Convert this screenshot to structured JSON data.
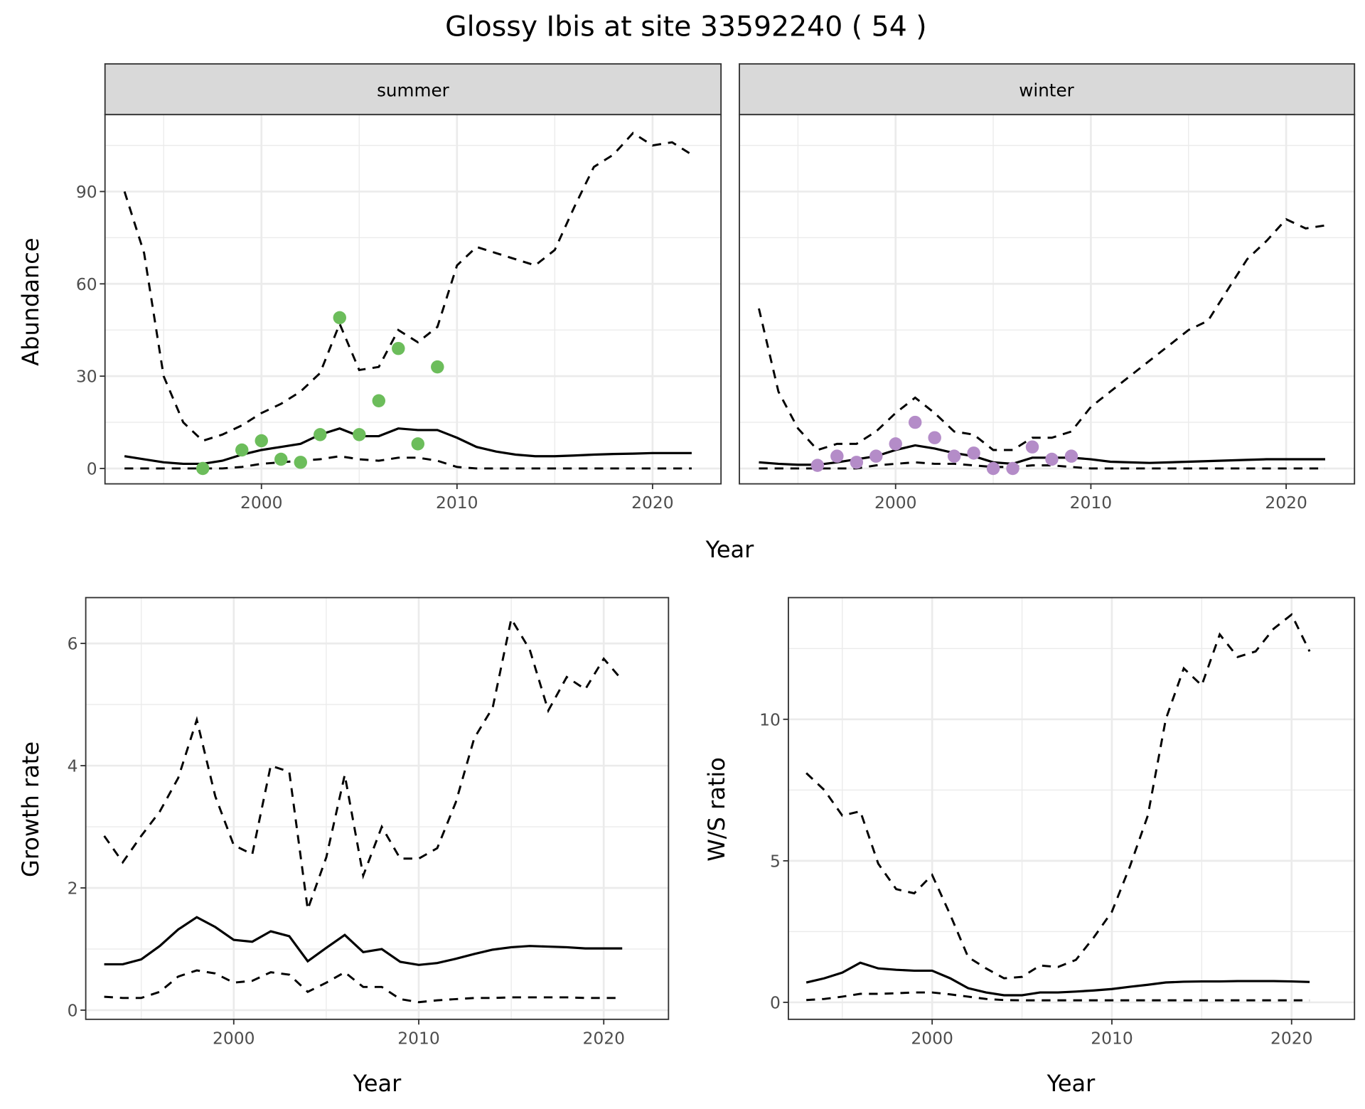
{
  "title": "Glossy Ibis at site 33592240 ( 54 )",
  "colors": {
    "summer_points": "#6cbd5b",
    "winter_points": "#b48cc8",
    "lines": "#000000"
  },
  "chart_data": [
    {
      "type": "line",
      "facet": "summer",
      "xlabel": "Year",
      "ylabel": "Abundance",
      "xlim": [
        1992,
        2023.5
      ],
      "ylim": [
        -5,
        115
      ],
      "xticks": [
        2000,
        2010,
        2020
      ],
      "yticks": [
        0,
        30,
        60,
        90
      ],
      "grid": true,
      "observed": {
        "x": [
          1997,
          1999,
          2000,
          2001,
          2002,
          2003,
          2004,
          2005,
          2006,
          2007,
          2008,
          2009
        ],
        "y": [
          0,
          6,
          9,
          3,
          2,
          11,
          49,
          11,
          22,
          39,
          8,
          33
        ]
      },
      "x": [
        1993,
        1994,
        1995,
        1996,
        1997,
        1998,
        1999,
        2000,
        2001,
        2002,
        2003,
        2004,
        2005,
        2006,
        2007,
        2008,
        2009,
        2010,
        2011,
        2012,
        2013,
        2014,
        2015,
        2016,
        2017,
        2018,
        2019,
        2020,
        2021,
        2022
      ],
      "mean": [
        4,
        3,
        2,
        1.5,
        1.5,
        2.5,
        4.5,
        6,
        7,
        8,
        11,
        13,
        10.5,
        10.5,
        13,
        12.5,
        12.5,
        10,
        7,
        5.5,
        4.5,
        4,
        4,
        4.2,
        4.5,
        4.7,
        4.8,
        5,
        5,
        5
      ],
      "upper": [
        90,
        70,
        30,
        15,
        9,
        11,
        14,
        18,
        21,
        25,
        31,
        47,
        32,
        33,
        45,
        41,
        46,
        66,
        72,
        70,
        68,
        66,
        71,
        85,
        98,
        102,
        109,
        105,
        106,
        102
      ],
      "lower": [
        0,
        0,
        0,
        0,
        0,
        0,
        0.5,
        1.5,
        2,
        2.5,
        3,
        4,
        3,
        2.5,
        3.5,
        3.5,
        2.5,
        0.5,
        0,
        0,
        0,
        0,
        0,
        0,
        0,
        0,
        0,
        0,
        0,
        0
      ]
    },
    {
      "type": "line",
      "facet": "winter",
      "xlabel": "Year",
      "ylabel": "Abundance",
      "xlim": [
        1992,
        2023.5
      ],
      "ylim": [
        -5,
        115
      ],
      "xticks": [
        2000,
        2010,
        2020
      ],
      "yticks": [
        0,
        30,
        60,
        90
      ],
      "grid": true,
      "observed": {
        "x": [
          1996,
          1997,
          1998,
          1999,
          2000,
          2001,
          2002,
          2003,
          2004,
          2005,
          2006,
          2007,
          2008,
          2009
        ],
        "y": [
          1,
          4,
          2,
          4,
          8,
          15,
          10,
          4,
          5,
          0,
          0,
          7,
          3,
          4
        ]
      },
      "x": [
        1993,
        1994,
        1995,
        1996,
        1997,
        1998,
        1999,
        2000,
        2001,
        2002,
        2003,
        2004,
        2005,
        2006,
        2007,
        2008,
        2009,
        2010,
        2011,
        2012,
        2013,
        2014,
        2015,
        2016,
        2017,
        2018,
        2019,
        2020,
        2021,
        2022
      ],
      "mean": [
        2,
        1.5,
        1.2,
        1.2,
        2,
        3,
        4,
        6,
        7.5,
        6.5,
        5,
        4,
        2,
        1.5,
        3.5,
        3.5,
        3.5,
        3,
        2.2,
        2,
        1.8,
        2,
        2.2,
        2.4,
        2.6,
        2.8,
        3,
        3,
        3,
        3
      ],
      "upper": [
        52,
        25,
        13,
        6,
        8,
        8,
        12,
        18,
        23,
        18,
        12,
        11,
        6,
        6,
        10,
        10,
        12,
        20,
        25,
        30,
        35,
        40,
        45,
        48,
        58,
        68,
        74,
        81,
        78,
        79
      ],
      "lower": [
        0,
        0,
        0,
        0,
        0,
        0,
        1,
        1.5,
        2,
        1.5,
        1.5,
        1,
        0.5,
        0.5,
        1,
        1,
        0.5,
        0,
        0,
        0,
        0,
        0,
        0,
        0,
        0,
        0,
        0,
        0,
        0,
        0
      ]
    },
    {
      "type": "line",
      "xlabel": "Year",
      "ylabel": "Growth rate",
      "xlim": [
        1992,
        2023.5
      ],
      "ylim": [
        -0.15,
        6.75
      ],
      "xticks": [
        2000,
        2010,
        2020
      ],
      "yticks": [
        0,
        2,
        4,
        6
      ],
      "grid": true,
      "x": [
        1993,
        1994,
        1995,
        1996,
        1997,
        1998,
        1999,
        2000,
        2001,
        2002,
        2003,
        2004,
        2005,
        2006,
        2007,
        2008,
        2009,
        2010,
        2011,
        2012,
        2013,
        2014,
        2015,
        2016,
        2017,
        2018,
        2019,
        2020,
        2021
      ],
      "mean": [
        0.75,
        0.75,
        0.83,
        1.05,
        1.32,
        1.52,
        1.36,
        1.15,
        1.12,
        1.29,
        1.21,
        0.8,
        1.02,
        1.23,
        0.95,
        1.0,
        0.79,
        0.74,
        0.77,
        0.84,
        0.92,
        0.99,
        1.03,
        1.05,
        1.04,
        1.03,
        1.01,
        1.01,
        1.01
      ],
      "upper": [
        2.85,
        2.42,
        2.85,
        3.25,
        3.8,
        4.75,
        3.5,
        2.7,
        2.55,
        4.0,
        3.9,
        1.65,
        2.5,
        3.85,
        2.2,
        3.0,
        2.48,
        2.48,
        2.65,
        3.4,
        4.45,
        4.95,
        6.4,
        5.9,
        4.9,
        5.45,
        5.25,
        5.75,
        5.4
      ],
      "lower": [
        0.22,
        0.2,
        0.2,
        0.3,
        0.55,
        0.65,
        0.6,
        0.45,
        0.48,
        0.62,
        0.58,
        0.3,
        0.45,
        0.62,
        0.38,
        0.38,
        0.18,
        0.13,
        0.16,
        0.18,
        0.2,
        0.2,
        0.21,
        0.21,
        0.21,
        0.21,
        0.2,
        0.2,
        0.2
      ]
    },
    {
      "type": "line",
      "xlabel": "Year",
      "ylabel": "W/S ratio",
      "xlim": [
        1992,
        2023.5
      ],
      "ylim": [
        -0.6,
        14.3
      ],
      "xticks": [
        2000,
        2010,
        2020
      ],
      "yticks": [
        0,
        5,
        10
      ],
      "grid": true,
      "x": [
        1993,
        1994,
        1995,
        1996,
        1997,
        1998,
        1999,
        2000,
        2001,
        2002,
        2003,
        2004,
        2005,
        2006,
        2007,
        2008,
        2009,
        2010,
        2011,
        2012,
        2013,
        2014,
        2015,
        2016,
        2017,
        2018,
        2019,
        2020,
        2021
      ],
      "mean": [
        0.7,
        0.85,
        1.05,
        1.4,
        1.2,
        1.15,
        1.12,
        1.12,
        0.85,
        0.5,
        0.35,
        0.25,
        0.25,
        0.35,
        0.35,
        0.38,
        0.42,
        0.47,
        0.55,
        0.62,
        0.7,
        0.73,
        0.74,
        0.74,
        0.75,
        0.75,
        0.75,
        0.74,
        0.72
      ],
      "upper": [
        8.1,
        7.5,
        6.6,
        6.75,
        4.9,
        4.0,
        3.85,
        4.5,
        3.1,
        1.6,
        1.2,
        0.85,
        0.9,
        1.3,
        1.25,
        1.5,
        2.3,
        3.2,
        4.8,
        6.6,
        10.0,
        11.8,
        11.2,
        13.0,
        12.2,
        12.4,
        13.2,
        13.7,
        12.4
      ],
      "lower": [
        0.08,
        0.12,
        0.2,
        0.3,
        0.3,
        0.32,
        0.35,
        0.35,
        0.28,
        0.2,
        0.12,
        0.08,
        0.07,
        0.07,
        0.07,
        0.07,
        0.07,
        0.07,
        0.07,
        0.07,
        0.07,
        0.07,
        0.07,
        0.07,
        0.07,
        0.07,
        0.07,
        0.07,
        0.07
      ]
    }
  ]
}
